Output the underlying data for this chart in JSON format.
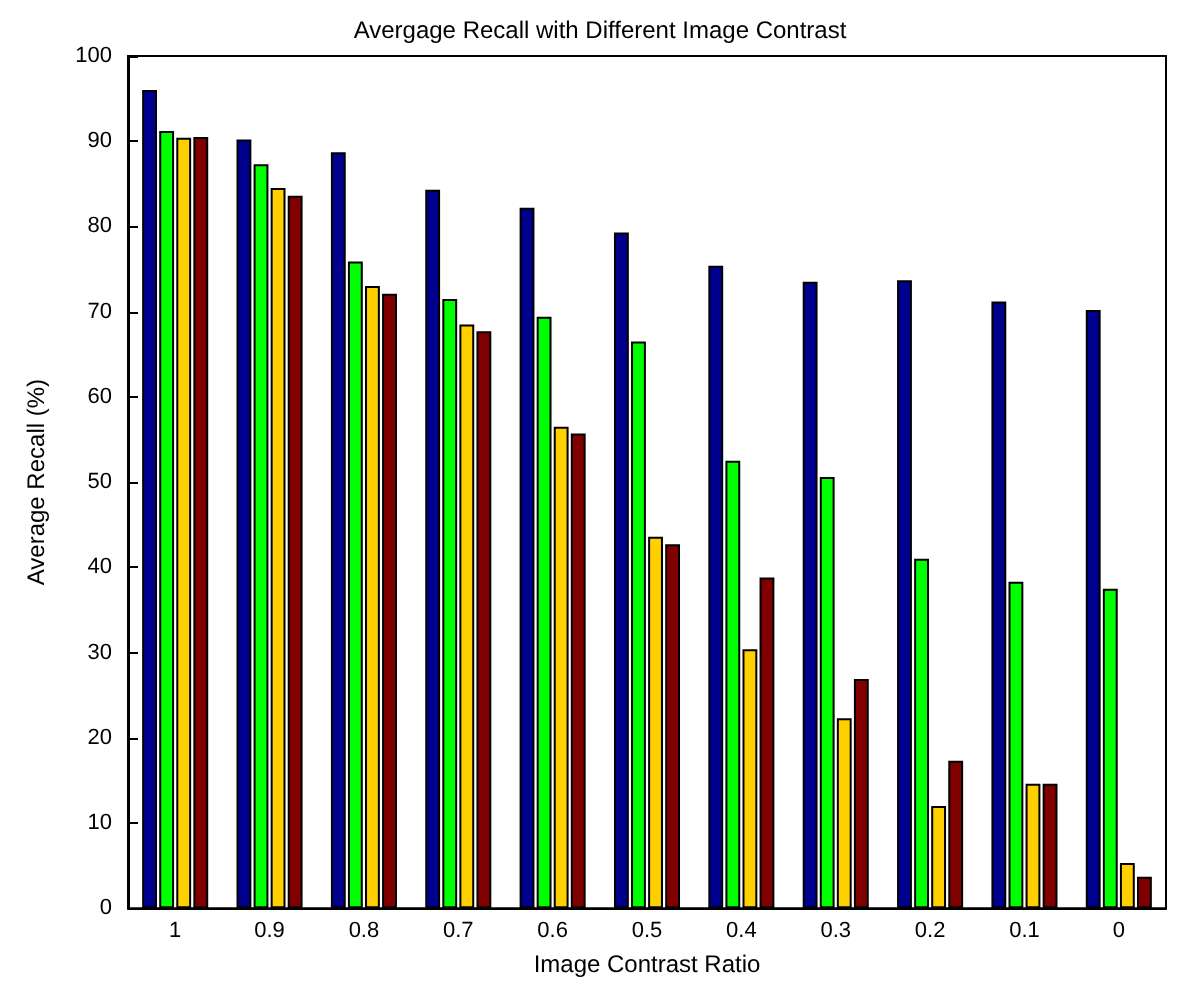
{
  "chart_data": {
    "type": "bar",
    "title": "Avergage Recall with Different Image Contrast",
    "xlabel": "Image Contrast Ratio",
    "ylabel": "Average Recall (%)",
    "categories": [
      "1",
      "0.9",
      "0.8",
      "0.7",
      "0.6",
      "0.5",
      "0.4",
      "0.3",
      "0.2",
      "0.1",
      "0"
    ],
    "series": [
      {
        "color": "#00008f",
        "values": [
          96,
          90.2,
          88.7,
          84.3,
          82.2,
          79.3,
          75.4,
          73.5,
          73.7,
          71.2,
          70.2
        ]
      },
      {
        "color": "#00ff00",
        "values": [
          91.2,
          87.3,
          75.9,
          71.5,
          69.4,
          66.5,
          52.5,
          50.6,
          41,
          38.3,
          37.5
        ]
      },
      {
        "color": "#ffd000",
        "values": [
          90.4,
          84.5,
          73,
          68.5,
          56.5,
          43.6,
          30.4,
          22.3,
          12,
          14.6,
          5.3
        ]
      },
      {
        "color": "#800000",
        "values": [
          90.5,
          83.6,
          72.1,
          67.7,
          55.7,
          42.7,
          38.8,
          26.9,
          17.3,
          14.6,
          3.7
        ]
      }
    ],
    "ylim": [
      0,
      100
    ],
    "yticks": [
      0,
      10,
      20,
      30,
      40,
      50,
      60,
      70,
      80,
      90,
      100
    ]
  }
}
